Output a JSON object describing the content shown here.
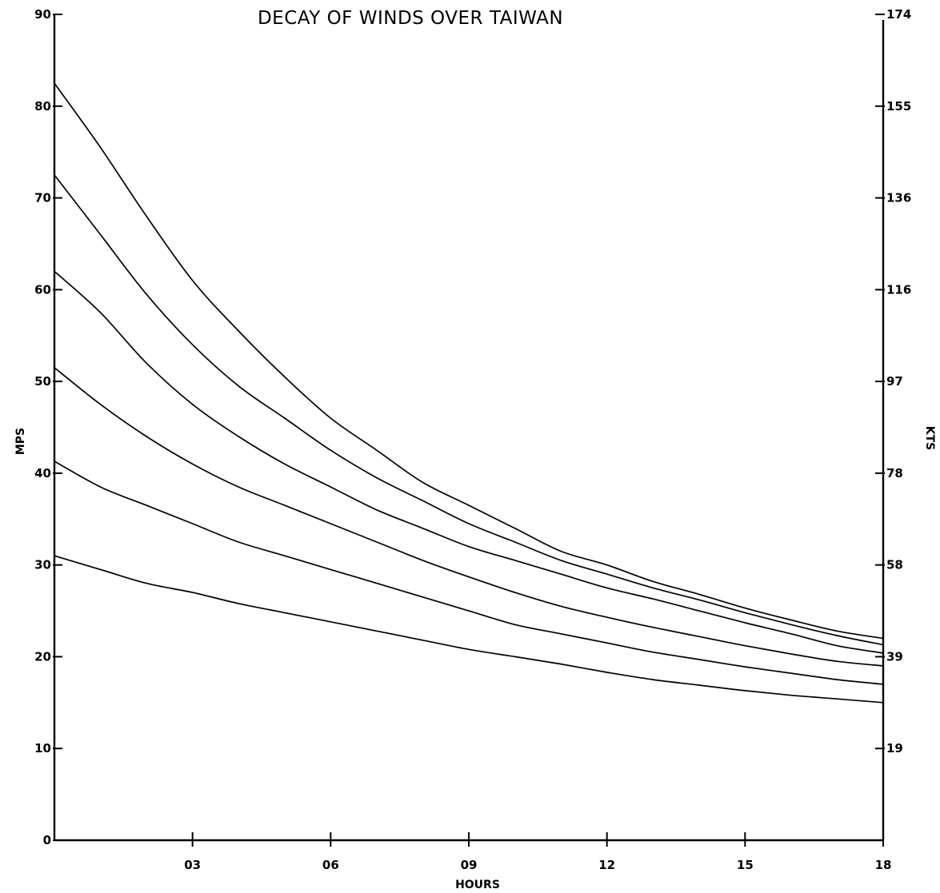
{
  "chart_data": {
    "type": "line",
    "title": "DECAY OF WINDS OVER TAIWAN",
    "xlabel": "HOURS",
    "ylabel": "MPS",
    "y2label": "KTS",
    "xlim": [
      0,
      18
    ],
    "ylim": [
      0,
      90
    ],
    "x_ticks": [
      3,
      6,
      9,
      12,
      15,
      18
    ],
    "x_tick_labels": [
      "03",
      "06",
      "09",
      "12",
      "15",
      "18"
    ],
    "y_ticks": [
      0,
      10,
      20,
      30,
      40,
      50,
      60,
      70,
      80,
      90
    ],
    "y_tick_labels": [
      "0",
      "10",
      "20",
      "30",
      "40",
      "50",
      "60",
      "70",
      "80",
      "90"
    ],
    "y2_ticks": [
      10,
      20,
      30,
      40,
      50,
      60,
      70,
      80,
      90
    ],
    "y2_tick_labels": [
      "19",
      "39",
      "58",
      "78",
      "97",
      "116",
      "136",
      "155",
      "174"
    ],
    "grid": false,
    "x": [
      0,
      1,
      2,
      3,
      4,
      5,
      6,
      7,
      8,
      9,
      10,
      11,
      12,
      13,
      14,
      15,
      16,
      17,
      18
    ],
    "series": [
      {
        "values": [
          82.5,
          75.5,
          68,
          61,
          55.5,
          50.5,
          46,
          42.5,
          39,
          36.5,
          34,
          31.5,
          30,
          28.2,
          26.8,
          25.3,
          24,
          22.8,
          22
        ]
      },
      {
        "values": [
          72.5,
          66,
          59.5,
          54,
          49.5,
          46,
          42.5,
          39.5,
          37,
          34.5,
          32.5,
          30.5,
          29,
          27.5,
          26.2,
          24.8,
          23.5,
          22.3,
          21.3
        ]
      },
      {
        "values": [
          62,
          57.5,
          52,
          47.5,
          44,
          41,
          38.5,
          36,
          34,
          32,
          30.5,
          29,
          27.5,
          26.3,
          25,
          23.7,
          22.5,
          21.2,
          20.4
        ]
      },
      {
        "values": [
          51.5,
          47.5,
          44,
          41,
          38.5,
          36.5,
          34.5,
          32.5,
          30.5,
          28.7,
          27,
          25.5,
          24.3,
          23.2,
          22.2,
          21.2,
          20.3,
          19.5,
          19
        ]
      },
      {
        "values": [
          41.3,
          38.5,
          36.5,
          34.5,
          32.5,
          31,
          29.5,
          28,
          26.5,
          25,
          23.5,
          22.5,
          21.5,
          20.5,
          19.7,
          18.9,
          18.2,
          17.5,
          17
        ]
      },
      {
        "values": [
          31,
          29.5,
          28,
          27,
          25.8,
          24.8,
          23.8,
          22.8,
          21.8,
          20.8,
          20,
          19.2,
          18.3,
          17.5,
          16.9,
          16.3,
          15.8,
          15.4,
          15
        ]
      }
    ]
  }
}
